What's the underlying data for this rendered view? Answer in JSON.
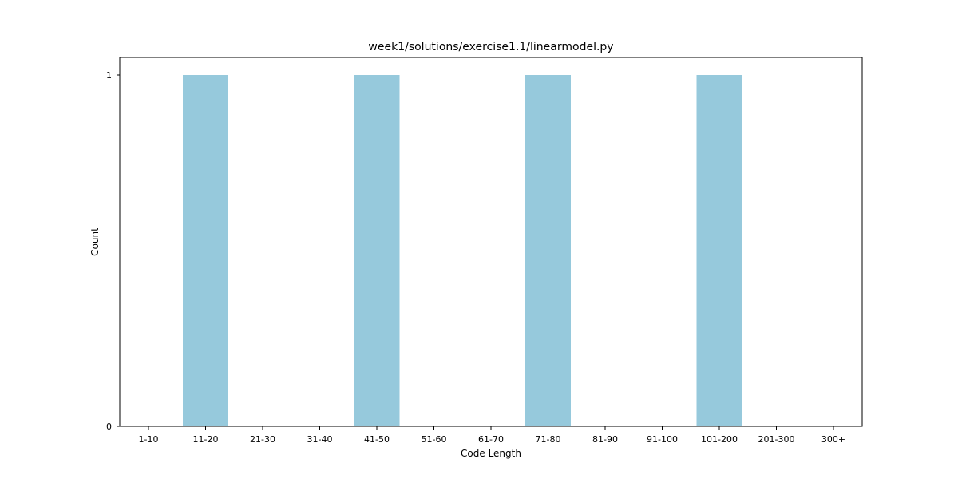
{
  "chart_data": {
    "type": "bar",
    "title": "week1/solutions/exercise1.1/linearmodel.py",
    "xlabel": "Code Length",
    "ylabel": "Count",
    "categories": [
      "1-10",
      "11-20",
      "21-30",
      "31-40",
      "41-50",
      "51-60",
      "61-70",
      "71-80",
      "81-90",
      "91-100",
      "101-200",
      "201-300",
      "300+"
    ],
    "values": [
      0,
      1,
      0,
      0,
      1,
      0,
      0,
      1,
      0,
      0,
      1,
      0,
      0
    ],
    "ylim": [
      0,
      1.05
    ],
    "yticks": [
      0,
      1
    ],
    "bar_color": "#96c9dc",
    "grid": false,
    "legend": "none"
  }
}
